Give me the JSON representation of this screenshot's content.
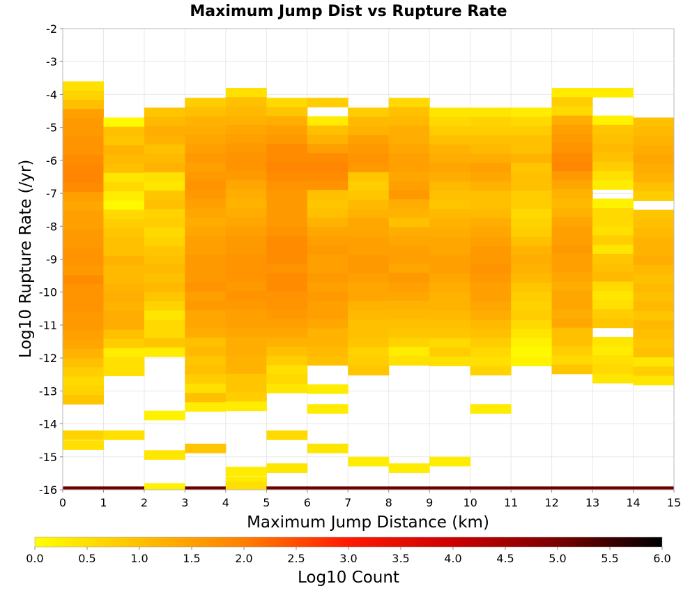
{
  "chart_data": {
    "type": "heatmap",
    "title": "Maximum Jump Dist vs Rupture Rate",
    "xlabel": "Maximum Jump Distance (km)",
    "ylabel": "Log10 Rupture Rate (/yr)",
    "xlim": [
      0,
      15
    ],
    "ylim": [
      -16,
      -2
    ],
    "x_bin_width": 1,
    "y_bin_width": 0.28,
    "x_ticks": [
      "0",
      "1",
      "2",
      "3",
      "4",
      "5",
      "6",
      "7",
      "8",
      "9",
      "10",
      "11",
      "12",
      "13",
      "14",
      "15"
    ],
    "y_ticks": [
      "-2",
      "-3",
      "-4",
      "-5",
      "-6",
      "-7",
      "-8",
      "-9",
      "-10",
      "-11",
      "-12",
      "-13",
      "-14",
      "-15",
      "-16"
    ],
    "grid": true,
    "colorbar": {
      "label": "Log10 Count",
      "range": [
        0,
        6
      ],
      "ticks": [
        "0.0",
        "0.5",
        "1.0",
        "1.5",
        "2.0",
        "2.5",
        "3.0",
        "3.5",
        "4.0",
        "4.5",
        "5.0",
        "5.5",
        "6.0"
      ],
      "stops": [
        [
          0.0,
          "#ffff00"
        ],
        [
          1.0,
          "#ffc000"
        ],
        [
          2.0,
          "#ff7f00"
        ],
        [
          3.0,
          "#ff1a00"
        ],
        [
          4.0,
          "#cc0000"
        ],
        [
          5.0,
          "#7a0000"
        ],
        [
          6.0,
          "#000000"
        ]
      ]
    },
    "columns": [
      {
        "x0": 0,
        "y_start": -3.6,
        "values": [
          0.5,
          0.7,
          1.0,
          1.5,
          1.6,
          1.6,
          1.7,
          1.7,
          1.8,
          1.9,
          1.9,
          1.8,
          1.5,
          1.4,
          1.5,
          1.5,
          1.6,
          1.6,
          1.7,
          1.7,
          1.6,
          1.8,
          1.7,
          1.7,
          1.7,
          1.6,
          1.6,
          1.5,
          1.4,
          1.2,
          1.0,
          0.8,
          0.6,
          0.7,
          0.9
        ],
        "extra": [
          [
            -14.2,
            0.7
          ],
          [
            -14.5,
            0.5
          ],
          [
            -15.9,
            5.1
          ]
        ]
      },
      {
        "x0": 1,
        "y_start": -4.7,
        "values": [
          0.1,
          1.0,
          0.9,
          1.2,
          1.1,
          1.0,
          0.4,
          0.6,
          0.3,
          0.1,
          0.6,
          0.8,
          0.9,
          1.0,
          1.0,
          1.2,
          1.1,
          1.1,
          1.2,
          1.3,
          1.2,
          1.3,
          1.3,
          1.0,
          0.8,
          0.3,
          0.5,
          0.5
        ],
        "extra": [
          [
            -14.2,
            0.5
          ],
          [
            -15.9,
            5.1
          ]
        ]
      },
      {
        "x0": 2,
        "y_start": -4.4,
        "values": [
          0.9,
          1.1,
          1.3,
          1.2,
          1.0,
          1.1,
          1.2,
          0.5,
          0.4,
          0.9,
          1.0,
          0.7,
          0.8,
          0.6,
          0.7,
          0.9,
          1.0,
          1.1,
          1.0,
          1.1,
          0.9,
          0.7,
          0.4,
          0.6,
          0.6,
          0.9,
          0.3
        ],
        "extra": [
          [
            -13.6,
            0.2
          ],
          [
            -14.8,
            0.4
          ],
          [
            -15.9,
            5.1
          ],
          [
            -15.8,
            0.2
          ]
        ]
      },
      {
        "x0": 3,
        "y_start": -4.1,
        "values": [
          0.8,
          1.0,
          1.2,
          1.3,
          1.4,
          1.5,
          1.6,
          1.5,
          1.6,
          1.7,
          1.6,
          1.5,
          1.4,
          1.3,
          1.4,
          1.5,
          1.5,
          1.6,
          1.6,
          1.6,
          1.7,
          1.5,
          1.6,
          1.4,
          1.4,
          1.3,
          1.0,
          1.1,
          0.9,
          1.0,
          0.8,
          0.5,
          1.0,
          0.3
        ],
        "extra": [
          [
            -14.6,
            0.9
          ],
          [
            -15.9,
            5.1
          ]
        ]
      },
      {
        "x0": 4,
        "y_start": -3.8,
        "values": [
          0.5,
          1.0,
          1.1,
          1.2,
          1.4,
          1.5,
          1.6,
          1.7,
          1.7,
          1.6,
          1.4,
          1.3,
          1.2,
          1.3,
          1.4,
          1.5,
          1.6,
          1.6,
          1.7,
          1.7,
          1.7,
          1.6,
          1.7,
          1.6,
          1.5,
          1.5,
          1.4,
          1.3,
          1.3,
          1.2,
          1.2,
          0.9,
          0.9,
          0.8,
          0.3
        ],
        "extra": [
          [
            -15.3,
            0.3
          ],
          [
            -15.6,
            0.3
          ],
          [
            -15.9,
            5.1
          ],
          [
            -15.75,
            0.5
          ]
        ]
      },
      {
        "x0": 5,
        "y_start": -4.1,
        "values": [
          0.6,
          0.9,
          1.3,
          1.5,
          1.6,
          1.8,
          1.8,
          1.9,
          1.8,
          1.7,
          1.6,
          1.6,
          1.6,
          1.6,
          1.7,
          1.8,
          1.8,
          1.8,
          1.7,
          1.8,
          1.8,
          1.7,
          1.7,
          1.6,
          1.5,
          1.4,
          1.2,
          1.0,
          0.8,
          0.5,
          0.6,
          0.4
        ],
        "extra": [
          [
            -14.2,
            0.6
          ],
          [
            -15.2,
            0.4
          ],
          [
            -15.9,
            5.1
          ]
        ]
      },
      {
        "x0": 6,
        "y_start": -4.1,
        "values": [
          0.8,
          -1,
          0.3,
          1.0,
          1.2,
          1.5,
          1.8,
          1.9,
          1.8,
          1.7,
          1.0,
          0.9,
          1.0,
          1.2,
          1.4,
          1.5,
          1.6,
          1.5,
          1.5,
          1.6,
          1.5,
          1.6,
          1.5,
          1.5,
          1.4,
          1.2,
          1.2,
          1.1,
          1.0
        ],
        "extra": [
          [
            -12.8,
            0.3
          ],
          [
            -13.4,
            0.3
          ],
          [
            -14.6,
            0.4
          ],
          [
            -15.9,
            5.1
          ]
        ]
      },
      {
        "x0": 7,
        "y_start": -4.4,
        "values": [
          0.8,
          1.1,
          1.2,
          1.5,
          1.6,
          1.7,
          1.6,
          0.9,
          0.8,
          0.9,
          1.1,
          1.2,
          1.4,
          1.4,
          1.5,
          1.5,
          1.6,
          1.6,
          1.5,
          1.4,
          1.4,
          1.2,
          1.1,
          1.0,
          1.0,
          0.9,
          0.7,
          0.8,
          0.9
        ],
        "extra": [
          [
            -15.0,
            0.3
          ],
          [
            -15.9,
            5.1
          ]
        ]
      },
      {
        "x0": 8,
        "y_start": -4.1,
        "values": [
          0.6,
          1.0,
          1.1,
          1.3,
          1.3,
          1.4,
          1.5,
          1.5,
          1.4,
          1.5,
          1.6,
          1.3,
          1.2,
          1.0,
          1.3,
          1.4,
          1.5,
          1.5,
          1.4,
          1.6,
          1.5,
          1.4,
          1.2,
          1.1,
          1.0,
          0.9,
          0.7,
          0.3,
          0.5
        ],
        "extra": [
          [
            -15.2,
            0.3
          ],
          [
            -15.9,
            5.1
          ]
        ]
      },
      {
        "x0": 9,
        "y_start": -4.4,
        "values": [
          0.4,
          0.6,
          0.8,
          1.0,
          1.2,
          1.3,
          1.4,
          1.3,
          1.1,
          1.0,
          0.9,
          1.1,
          1.2,
          1.3,
          1.4,
          1.4,
          1.5,
          1.5,
          1.4,
          1.3,
          1.2,
          1.2,
          1.1,
          1.0,
          0.9,
          0.6,
          0.8,
          0.5
        ],
        "extra": [
          [
            -15.0,
            0.3
          ],
          [
            -15.9,
            5.1
          ]
        ]
      },
      {
        "x0": 10,
        "y_start": -4.4,
        "values": [
          0.4,
          0.7,
          0.8,
          1.0,
          1.1,
          1.3,
          1.5,
          1.4,
          1.2,
          1.0,
          1.0,
          1.1,
          1.3,
          1.4,
          1.5,
          1.6,
          1.6,
          1.7,
          1.6,
          1.5,
          1.5,
          1.4,
          1.3,
          1.1,
          1.0,
          0.8,
          0.6,
          0.5,
          0.7
        ],
        "extra": [
          [
            -13.4,
            0.3
          ],
          [
            -15.9,
            5.1
          ]
        ]
      },
      {
        "x0": 11,
        "y_start": -4.4,
        "values": [
          0.3,
          0.6,
          0.8,
          1.0,
          1.0,
          1.2,
          0.9,
          1.0,
          1.0,
          0.8,
          0.8,
          0.6,
          0.7,
          0.8,
          1.0,
          1.2,
          1.3,
          1.2,
          1.1,
          0.9,
          0.8,
          0.7,
          0.8,
          0.6,
          0.4,
          0.2,
          0.1,
          0.2
        ],
        "extra": [
          [
            -15.9,
            5.1
          ]
        ]
      },
      {
        "x0": 12,
        "y_start": -3.8,
        "values": [
          0.3,
          0.8,
          0.6,
          1.3,
          1.5,
          1.6,
          1.7,
          1.8,
          1.9,
          1.6,
          1.4,
          1.2,
          1.1,
          1.2,
          1.4,
          1.5,
          1.5,
          1.6,
          1.5,
          1.5,
          1.4,
          1.3,
          1.4,
          1.4,
          1.3,
          1.4,
          1.0,
          1.0,
          0.8,
          0.6,
          0.9
        ],
        "extra": [
          [
            -15.9,
            5.1
          ]
        ]
      },
      {
        "x0": 13,
        "y_start": -3.8,
        "values": [
          0.3,
          -1,
          -1,
          0.2,
          0.9,
          1.0,
          1.1,
          1.0,
          0.8,
          0.5,
          0.3,
          -1,
          0.2,
          0.6,
          0.6,
          0.5,
          0.8,
          0.4,
          0.9,
          1.0,
          1.1,
          0.6,
          0.4,
          0.5,
          0.8,
          0.9,
          -1,
          0.4,
          0.3,
          0.5,
          0.6,
          0.4
        ],
        "extra": [
          [
            -15.9,
            5.1
          ]
        ]
      },
      {
        "x0": 14,
        "y_start": -4.7,
        "values": [
          1.0,
          1.1,
          1.2,
          1.3,
          1.4,
          1.3,
          1.2,
          1.0,
          0.8,
          -1,
          0.9,
          1.0,
          1.1,
          1.2,
          1.2,
          1.3,
          1.1,
          1.0,
          1.1,
          1.0,
          1.1,
          0.9,
          1.1,
          1.0,
          0.9,
          1.0,
          0.4,
          0.8,
          0.4
        ],
        "extra": [
          [
            -15.9,
            5.1
          ]
        ]
      }
    ]
  }
}
